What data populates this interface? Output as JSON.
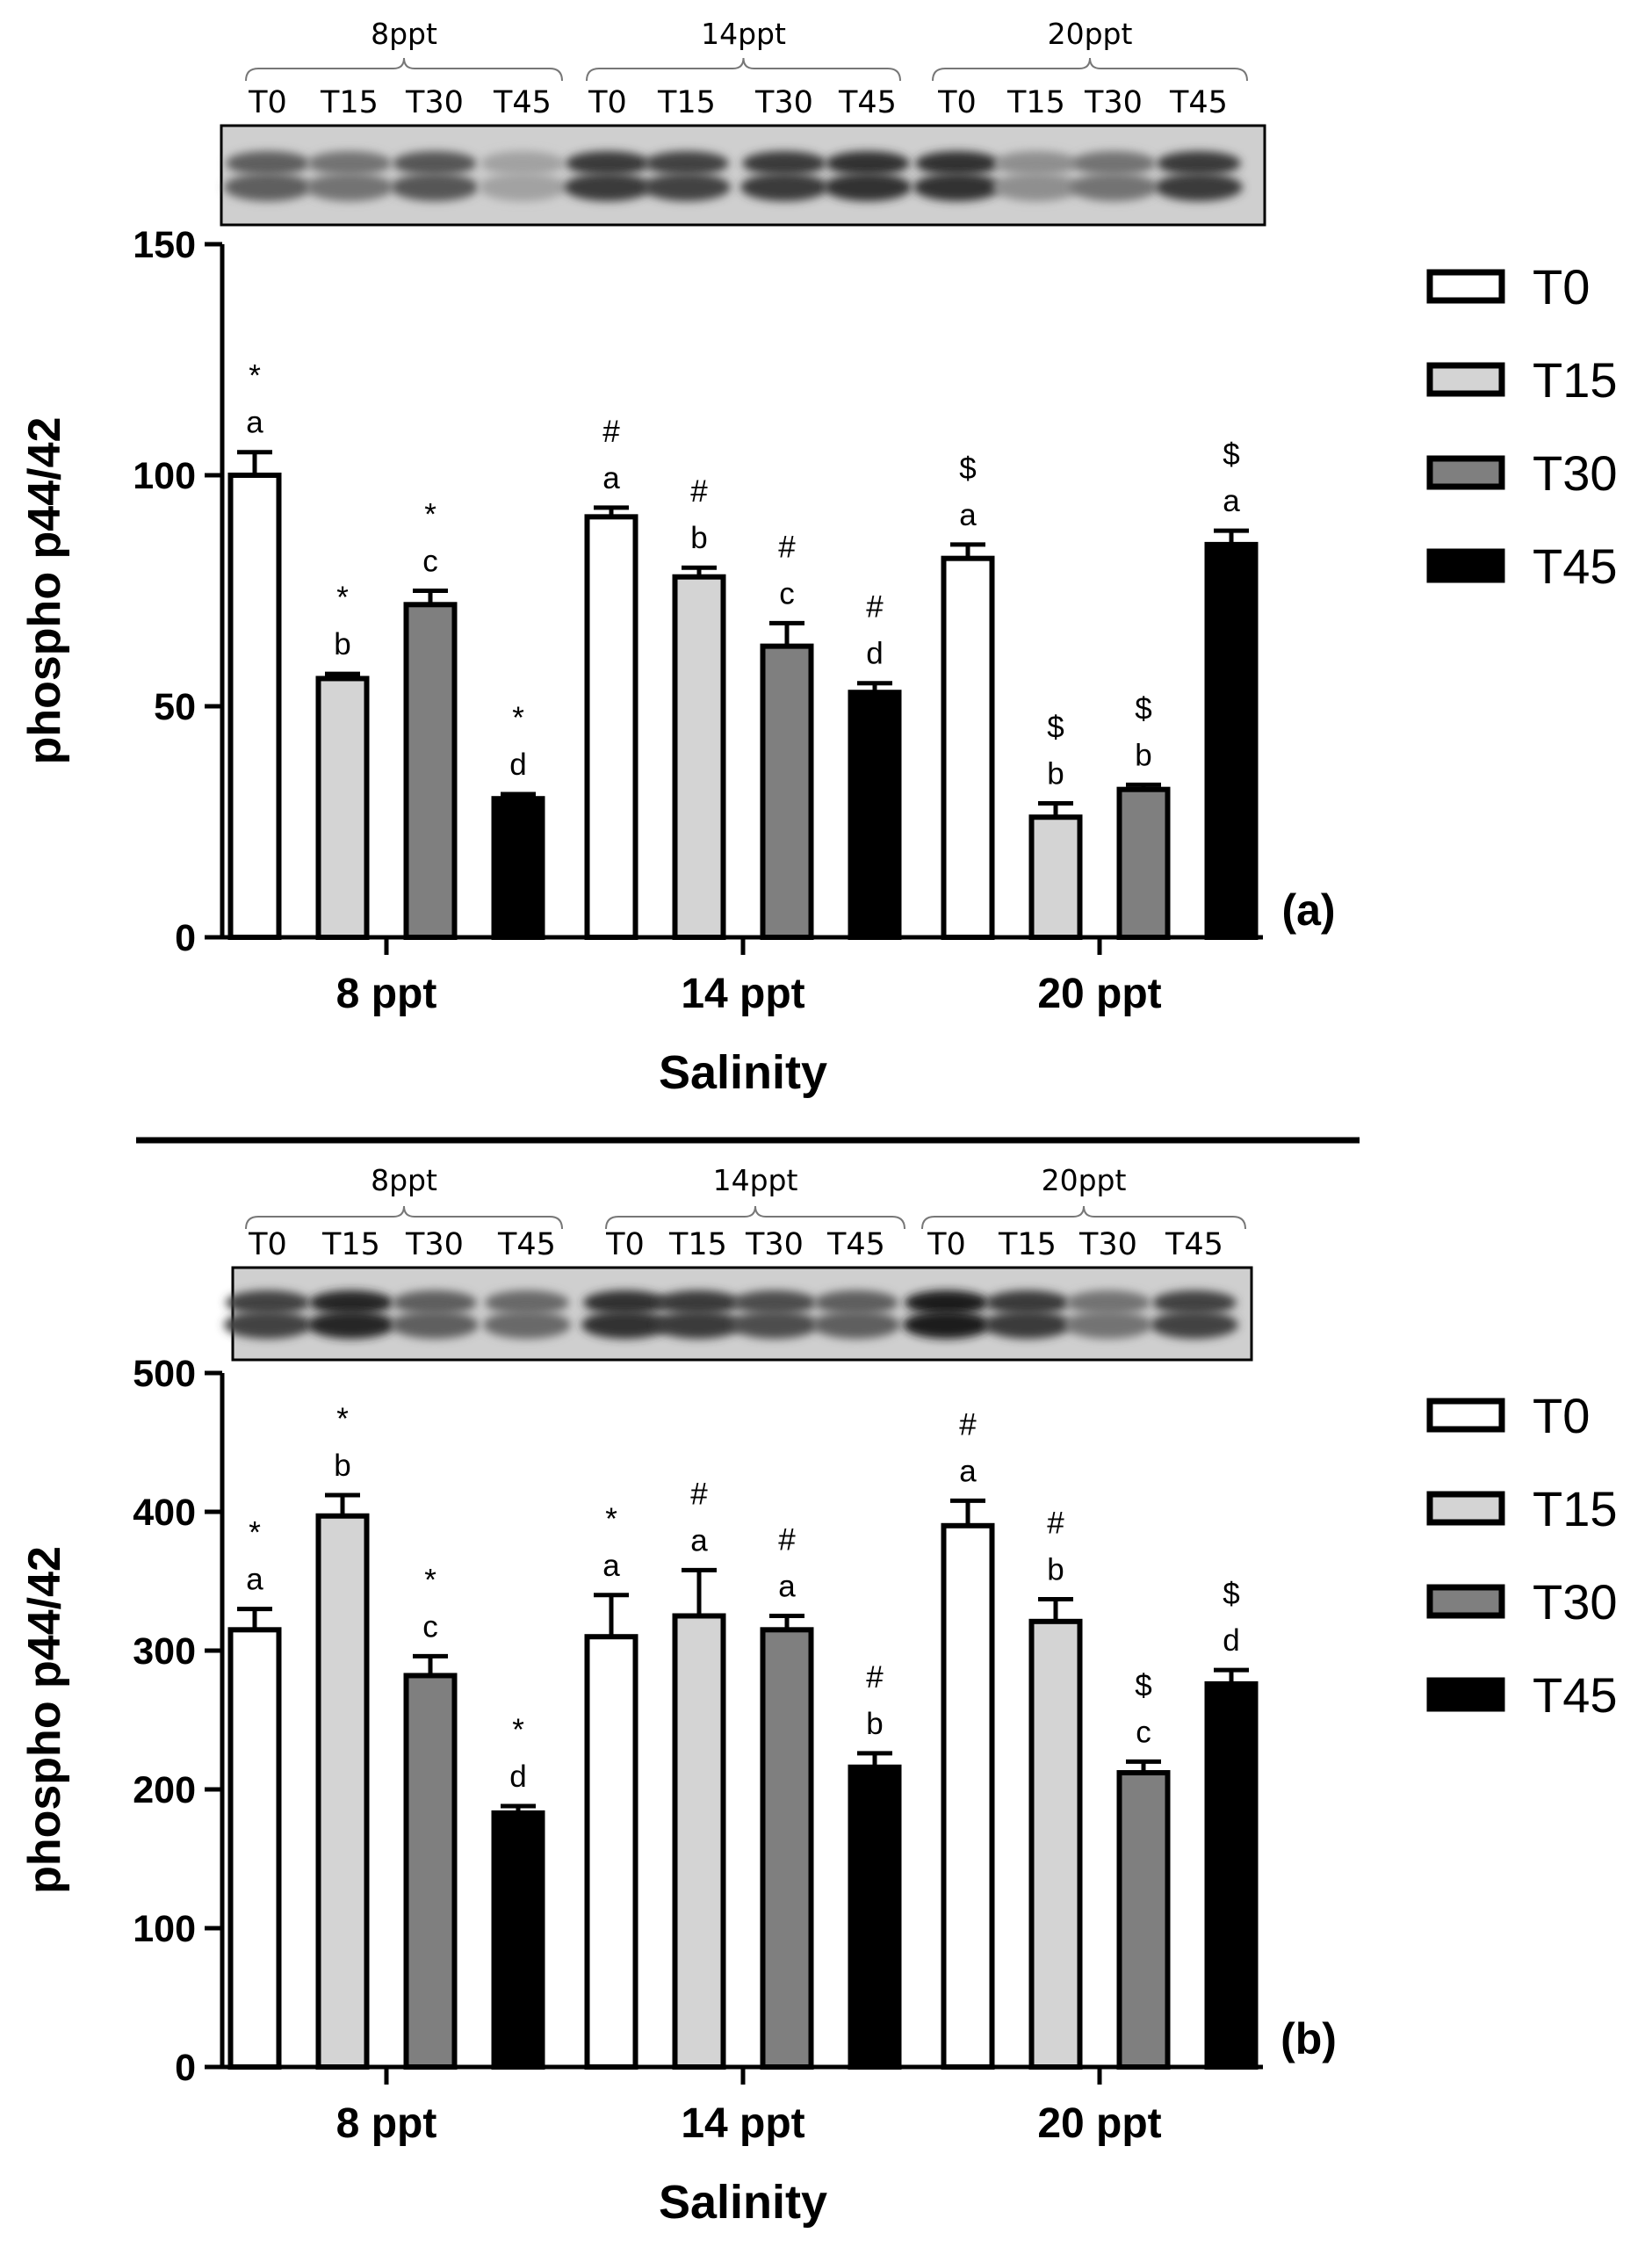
{
  "legend": {
    "T0": "T0",
    "T15": "T15",
    "T30": "T30",
    "T45": "T45"
  },
  "colors": {
    "T0": "#ffffff",
    "T15": "#d4d4d4",
    "T30": "#7f7f7f",
    "T45": "#000000",
    "axis": "#000000"
  },
  "chart_data": [
    {
      "panel": "(a)",
      "type": "bar",
      "title": "",
      "xlabel": "Salinity",
      "ylabel": "phospho p44/42",
      "ylim": [
        0,
        150
      ],
      "yticks": [
        0,
        50,
        100,
        150
      ],
      "categories": [
        "8 ppt",
        "14 ppt",
        "20 ppt"
      ],
      "series": [
        {
          "name": "T0",
          "values": [
            100,
            91,
            82
          ],
          "errors": [
            5,
            2,
            3
          ],
          "letters": [
            "a",
            "a",
            "a"
          ],
          "symbols": [
            "*",
            "#",
            "$"
          ]
        },
        {
          "name": "T15",
          "values": [
            56,
            78,
            26
          ],
          "errors": [
            1,
            2,
            3
          ],
          "letters": [
            "b",
            "b",
            "b"
          ],
          "symbols": [
            "*",
            "#",
            "$"
          ]
        },
        {
          "name": "T30",
          "values": [
            72,
            63,
            32
          ],
          "errors": [
            3,
            5,
            1
          ],
          "letters": [
            "c",
            "c",
            "b"
          ],
          "symbols": [
            "*",
            "#",
            "$"
          ]
        },
        {
          "name": "T45",
          "values": [
            30,
            53,
            85
          ],
          "errors": [
            1,
            2,
            3
          ],
          "letters": [
            "d",
            "d",
            "a"
          ],
          "symbols": [
            "*",
            "#",
            "$"
          ]
        }
      ],
      "blot": {
        "groups": [
          "8ppt",
          "14ppt",
          "20ppt"
        ],
        "lanes": [
          "T0",
          "T15",
          "T30",
          "T45"
        ]
      }
    },
    {
      "panel": "(b)",
      "type": "bar",
      "title": "",
      "xlabel": "Salinity",
      "ylabel": "phospho p44/42",
      "ylim": [
        0,
        500
      ],
      "yticks": [
        0,
        100,
        200,
        300,
        400,
        500
      ],
      "categories": [
        "8 ppt",
        "14 ppt",
        "20 ppt"
      ],
      "series": [
        {
          "name": "T0",
          "values": [
            315,
            310,
            390
          ],
          "errors": [
            15,
            30,
            18
          ],
          "letters": [
            "a",
            "a",
            "a"
          ],
          "symbols": [
            "*",
            "*",
            "#"
          ]
        },
        {
          "name": "T15",
          "values": [
            397,
            325,
            321
          ],
          "errors": [
            15,
            33,
            16
          ],
          "letters": [
            "b",
            "a",
            "b"
          ],
          "symbols": [
            "*",
            "#",
            "#"
          ]
        },
        {
          "name": "T30",
          "values": [
            282,
            315,
            212
          ],
          "errors": [
            14,
            10,
            8
          ],
          "letters": [
            "c",
            "a",
            "c"
          ],
          "symbols": [
            "*",
            "#",
            "$"
          ]
        },
        {
          "name": "T45",
          "values": [
            183,
            216,
            276
          ],
          "errors": [
            5,
            10,
            10
          ],
          "letters": [
            "d",
            "b",
            "d"
          ],
          "symbols": [
            "*",
            "#",
            "$"
          ]
        }
      ],
      "blot": {
        "groups": [
          "8ppt",
          "14ppt",
          "20ppt"
        ],
        "lanes": [
          "T0",
          "T15",
          "T30",
          "T45"
        ]
      }
    }
  ]
}
